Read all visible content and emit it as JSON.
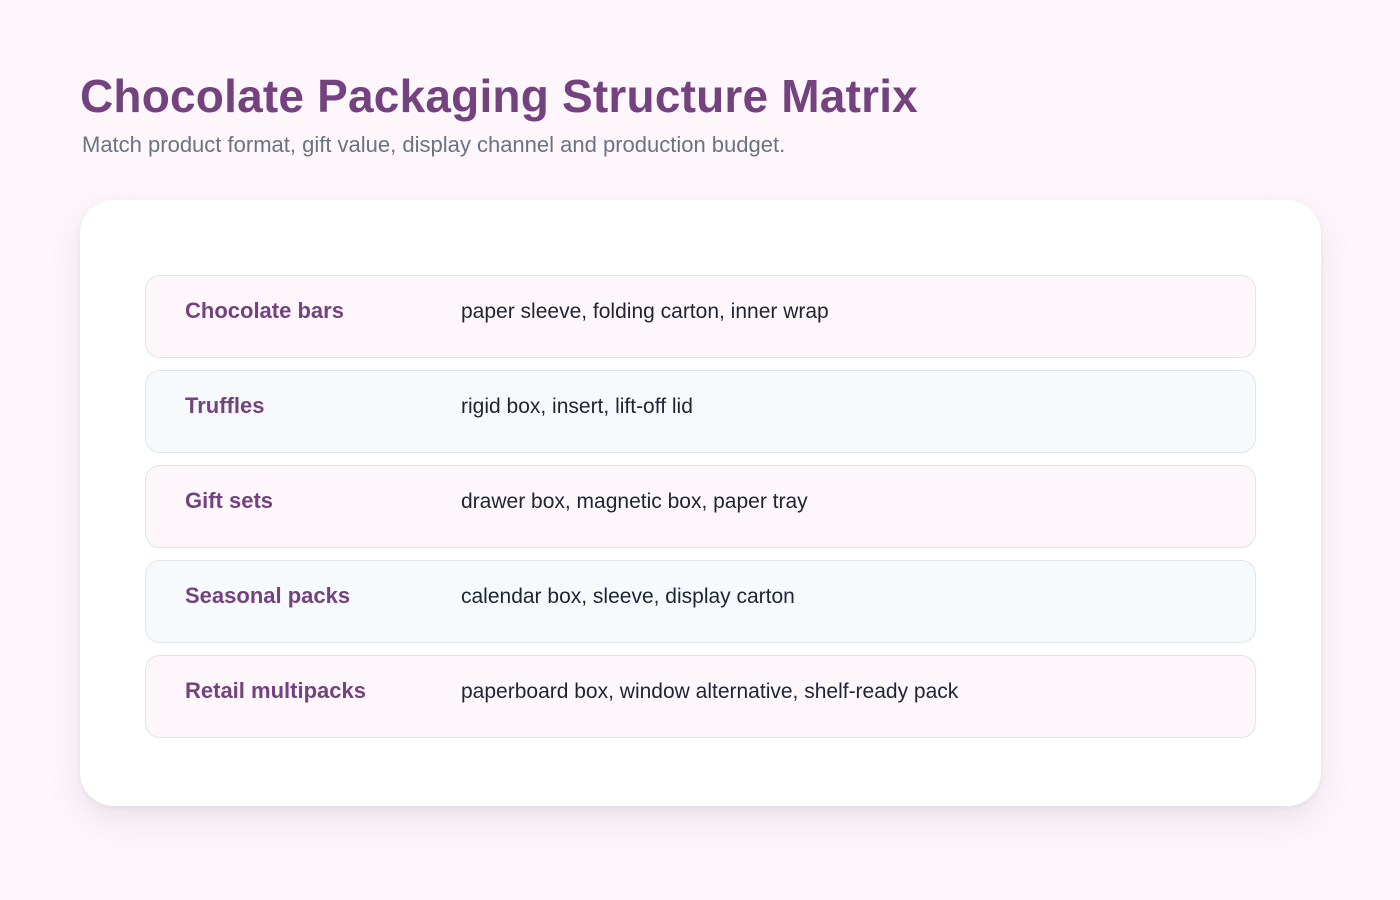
{
  "header": {
    "title": "Chocolate Packaging Structure Matrix",
    "subtitle": "Match product format, gift value, display channel and production budget."
  },
  "matrix": {
    "rows": [
      {
        "product": "Chocolate bars",
        "structures": "paper sleeve, folding carton, inner wrap"
      },
      {
        "product": "Truffles",
        "structures": "rigid box, insert, lift-off lid"
      },
      {
        "product": "Gift sets",
        "structures": "drawer box, magnetic box, paper tray"
      },
      {
        "product": "Seasonal packs",
        "structures": "calendar box, sleeve, display carton"
      },
      {
        "product": "Retail multipacks",
        "structures": "paperboard box, window alternative, shelf-ready pack"
      }
    ]
  },
  "colors": {
    "accent": "#74427f",
    "background": "#fdf7fc",
    "row_alt": "#f6fafd",
    "text": "#1f2433",
    "muted": "#6b7280"
  }
}
